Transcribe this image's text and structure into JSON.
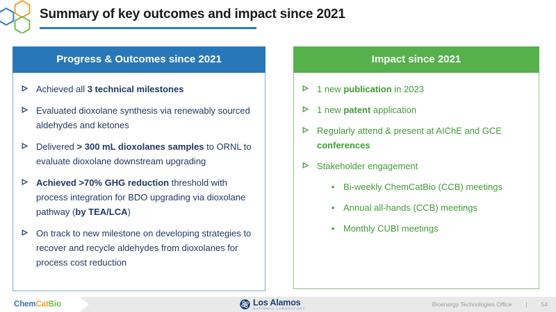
{
  "colors": {
    "title_underline": "#2b7ab8",
    "blue_header": "#2878b9",
    "blue_border": "#7aabd4",
    "navy_text": "#1f3864",
    "green_header": "#56b04c",
    "green_border": "#8cc27f",
    "green_text": "#3f9c35",
    "brand_blue": "#2e75b6",
    "brand_orange": "#f2a131",
    "brand_green": "#6cbf4a",
    "lanl_navy": "#1b3f77"
  },
  "header": {
    "title": "Summary of key outcomes and impact since 2021"
  },
  "left_panel": {
    "header": "Progress & Outcomes since 2021",
    "bullets": [
      {
        "segments": [
          {
            "t": "Achieved all "
          },
          {
            "t": "3 technical milestones",
            "b": true
          }
        ]
      },
      {
        "segments": [
          {
            "t": "Evaluated dioxolane synthesis via renewably sourced aldehydes and ketones"
          }
        ]
      },
      {
        "segments": [
          {
            "t": "Delivered "
          },
          {
            "t": "> 300 mL dioxolanes samples",
            "b": true
          },
          {
            "t": " to ORNL to evaluate dioxolane downstream upgrading"
          }
        ]
      },
      {
        "segments": [
          {
            "t": "Achieved >70% GHG reduction",
            "b": true
          },
          {
            "t": " threshold with process integration for BDO upgrading via dioxolane pathway ("
          },
          {
            "t": "by TEA/LCA",
            "b": true
          },
          {
            "t": ")"
          }
        ]
      },
      {
        "segments": [
          {
            "t": "On track to new milestone on developing strategies to recover and recycle aldehydes from dioxolanes for process cost reduction"
          }
        ]
      }
    ]
  },
  "right_panel": {
    "header": "Impact since 2021",
    "bullets": [
      {
        "segments": [
          {
            "t": "1 new "
          },
          {
            "t": "publication",
            "b": true
          },
          {
            "t": " in 2023"
          }
        ]
      },
      {
        "segments": [
          {
            "t": "1 new "
          },
          {
            "t": "patent",
            "b": true
          },
          {
            "t": " application"
          }
        ]
      },
      {
        "segments": [
          {
            "t": "Regularly attend & present at AIChE and GCE "
          },
          {
            "t": "conferences",
            "b": true
          }
        ]
      },
      {
        "segments": [
          {
            "t": "Stakeholder engagement"
          }
        ],
        "sub": [
          "Bi-weekly ChemCatBio (CCB) meetings",
          "Annual all-hands (CCB) meetings",
          "Monthly CUBI meetings"
        ]
      }
    ]
  },
  "footer": {
    "chemcatbio": {
      "chem": "Chem",
      "cat": "Cat",
      "bio": "Bio"
    },
    "los_alamos": {
      "name": "Los Alamos",
      "subtitle": "NATIONAL LABORATORY"
    },
    "office_label": "Bioenergy Technologies Office",
    "divider": "|",
    "page_number": "54"
  },
  "sub_bullet_glyph": "•"
}
